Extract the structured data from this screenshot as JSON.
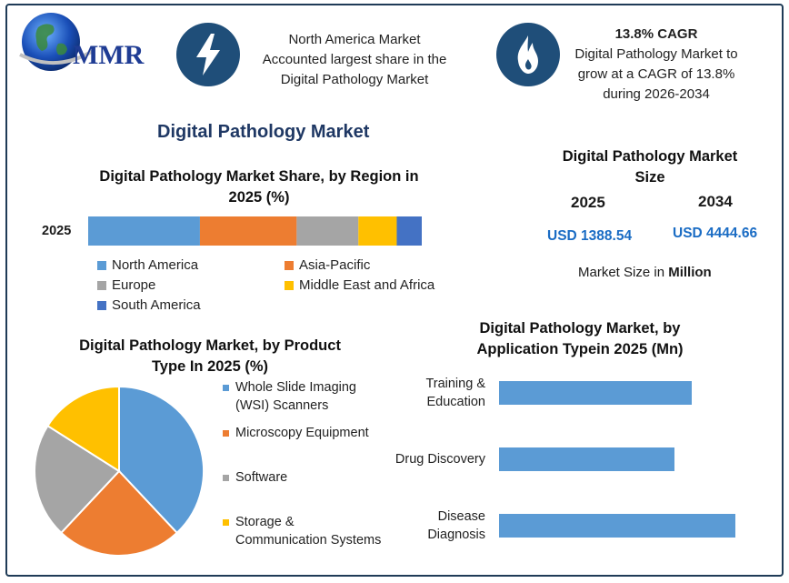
{
  "logo": {
    "text": "MMR"
  },
  "header": {
    "info1": {
      "icon": "lightning-icon",
      "lines": [
        "North America Market",
        "Accounted largest share in the",
        "Digital Pathology Market"
      ]
    },
    "info2": {
      "icon": "flame-icon",
      "heading": "13.8% CAGR",
      "lines": [
        "Digital Pathology Market to",
        "grow at a CAGR of 13.8%",
        "during 2026-2034"
      ]
    }
  },
  "main_title": "Digital Pathology Market",
  "market_size": {
    "title_lines": [
      "Digital Pathology Market",
      "Size"
    ],
    "year1": "2025",
    "year2": "2034",
    "value1": "USD 1388.54",
    "value2": "USD 4444.66",
    "note_prefix": "Market Size in ",
    "note_unit": "Million"
  },
  "colors": {
    "blue": "#5b9bd5",
    "orange": "#ed7d31",
    "gray": "#a5a5a5",
    "yellow": "#ffc000",
    "darkblue": "#4472c4",
    "navy": "#1f4e79"
  },
  "chart_data": [
    {
      "type": "bar",
      "orientation": "horizontal-stacked",
      "title": "Digital Pathology Market Share, by Region in 2025 (%)",
      "title_lines": [
        "Digital Pathology Market Share, by Region in",
        "2025 (%)"
      ],
      "categories": [
        "2025"
      ],
      "series": [
        {
          "name": "North America",
          "values": [
            33.5
          ],
          "color": "#5b9bd5"
        },
        {
          "name": "Asia-Pacific",
          "values": [
            29
          ],
          "color": "#ed7d31"
        },
        {
          "name": "Europe",
          "values": [
            18.5
          ],
          "color": "#a5a5a5"
        },
        {
          "name": "Middle East and Africa",
          "values": [
            11.5
          ],
          "color": "#ffc000"
        },
        {
          "name": "South America",
          "values": [
            7.5
          ],
          "color": "#4472c4"
        }
      ],
      "legend": "bottom"
    },
    {
      "type": "pie",
      "title": "Digital Pathology Market, by Product Type In 2025 (%)",
      "title_lines": [
        "Digital Pathology Market, by Product",
        "Type In 2025 (%)"
      ],
      "labels": [
        "Whole Slide Imaging (WSI) Scanners",
        "Microscopy Equipment",
        "Software",
        "Storage & Communication Systems"
      ],
      "label_lines": [
        [
          "Whole Slide Imaging",
          "(WSI) Scanners"
        ],
        [
          "Microscopy Equipment"
        ],
        [
          "Software"
        ],
        [
          "Storage &",
          "Communication Systems"
        ]
      ],
      "values": [
        38,
        24,
        22,
        16
      ],
      "colors": [
        "#5b9bd5",
        "#ed7d31",
        "#a5a5a5",
        "#ffc000"
      ],
      "legend": "right"
    },
    {
      "type": "bar",
      "orientation": "horizontal",
      "title": "Digital Pathology Market, by Application Typein 2025 (Mn)",
      "title_lines": [
        "Digital Pathology Market, by",
        "Application Typein 2025 (Mn)"
      ],
      "categories": [
        "Training & Education",
        "Drug Discovery",
        "Disease Diagnosis"
      ],
      "category_lines": [
        [
          "Training &",
          "Education"
        ],
        [
          "Drug Discovery"
        ],
        [
          "Disease",
          "Diagnosis"
        ]
      ],
      "values": [
        510,
        465,
        625
      ],
      "color": "#5b9bd5",
      "xlim": [
        0,
        650
      ]
    }
  ]
}
